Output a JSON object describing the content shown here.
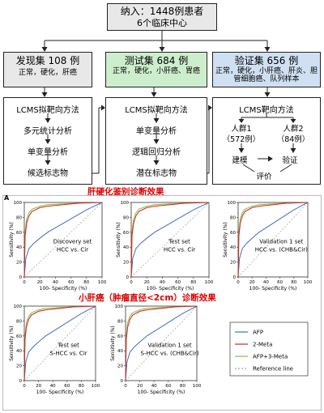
{
  "top": {
    "line1": "纳入：1448例患者",
    "line2": "6个临床中心"
  },
  "discovery": {
    "title": "发现集 108 例",
    "subtitle": "正常，硬化，肝癌",
    "steps": [
      "LCMS拟靶向方法",
      "多元统计分析",
      "单变量分析",
      "候选标志物"
    ]
  },
  "test": {
    "title": "测试集 684 例",
    "subtitle": "正常，硬化，小肝癌、胃癌",
    "steps": [
      "LCMS拟靶向方法",
      "单变量分析",
      "逻辑回归分析",
      "潜在标志物"
    ]
  },
  "validation": {
    "title": "验证集 656 例",
    "subtitle": "正常，硬化，小肝癌、肝炎、胆管细胞癌、队列样本",
    "step1": "LCMS靶向方法",
    "cohort1": "人群1",
    "cohort1_n": "（572例）",
    "cohort2": "人群2",
    "cohort2_n": "（84例）",
    "build": "建模",
    "verify": "验证",
    "eval": "评价"
  },
  "section_a_title": "肝硬化鉴别诊断效果",
  "section_b_title": "小肝癌（肿瘤直径<2cm）诊断效果",
  "panel_letter": "A",
  "colors": {
    "afp": "#3a6fc4",
    "meta2": "#d62020",
    "meta3": "#7ec43a",
    "ref": "#aaaaaa",
    "green_hdr": "#cdeecd",
    "blue_hdr": "#cfe0f2",
    "grey_hdr": "#e8e8e8"
  },
  "axes": {
    "ylabel": "Sensitivity (%)",
    "xlabel": "100- Specificity (%)",
    "ticks": [
      "0",
      "20",
      "40",
      "60",
      "80",
      "100"
    ]
  },
  "legend": [
    "AFP",
    "2-Meta",
    "AFP+3-Meta",
    "Reference line"
  ],
  "panels": [
    {
      "title1": "Discovery set",
      "title2": "HCC vs. Cir"
    },
    {
      "title1": "Test set",
      "title2": "HCC vs. Cir"
    },
    {
      "title1": "Validation 1 set",
      "title2": "HCC vs. (CHB&Cir)"
    },
    {
      "title1": "Test set",
      "title2": "S-HCC vs. Cir"
    },
    {
      "title1": "Validation 1 set",
      "title2": "S-HCC vs. (CHB&Cir)"
    }
  ]
}
